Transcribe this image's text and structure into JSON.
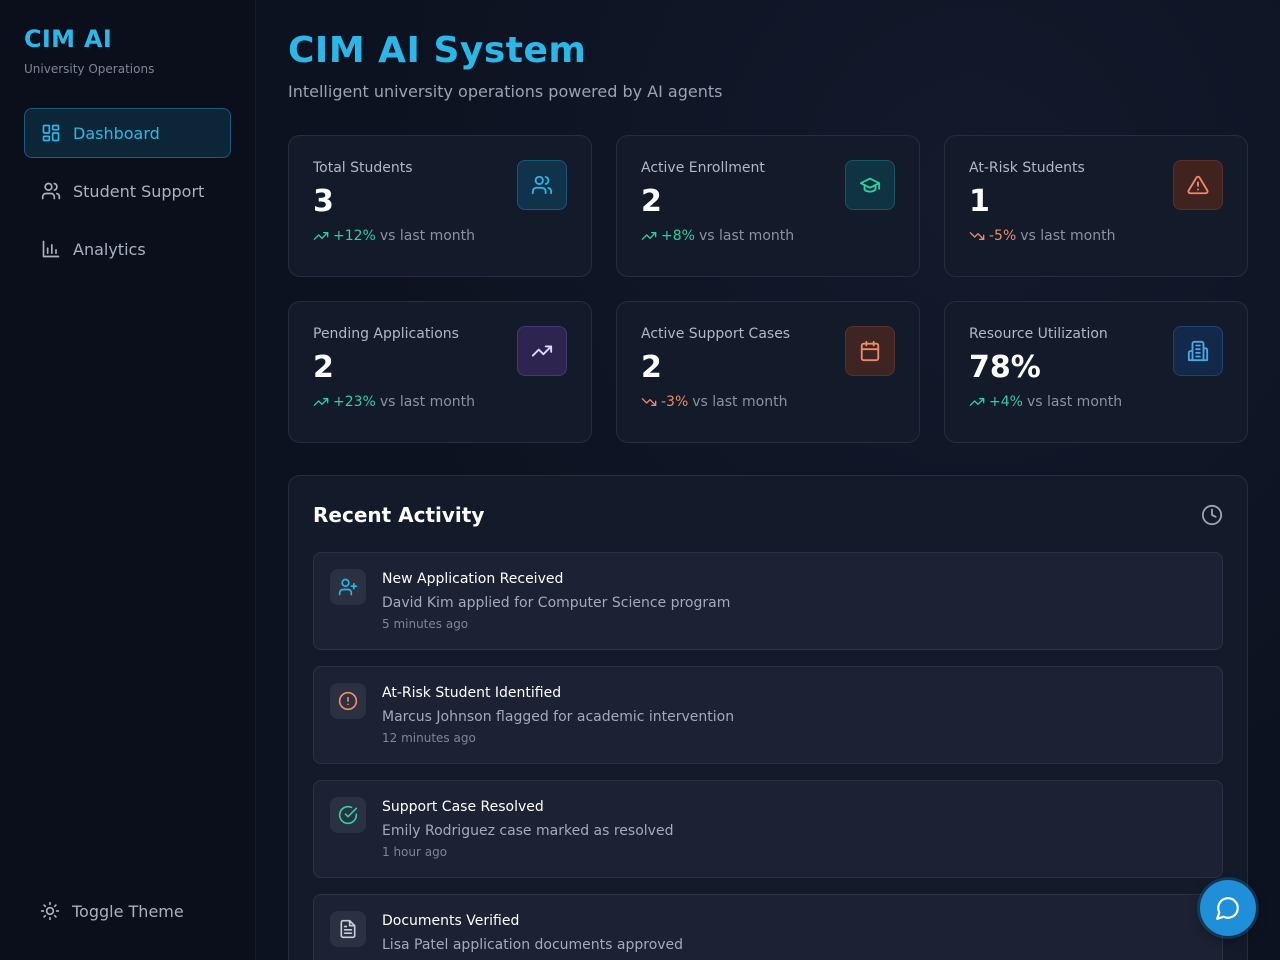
{
  "brand": {
    "title": "CIM AI",
    "subtitle": "University Operations"
  },
  "sidebar": {
    "items": [
      {
        "label": "Dashboard",
        "icon": "dashboard-grid-icon",
        "active": true
      },
      {
        "label": "Student Support",
        "icon": "users-icon",
        "active": false
      },
      {
        "label": "Analytics",
        "icon": "bar-chart-icon",
        "active": false
      }
    ],
    "toggle_theme": "Toggle Theme"
  },
  "header": {
    "title": "CIM AI System",
    "subtitle": "Intelligent university operations powered by AI agents"
  },
  "stats": [
    {
      "label": "Total Students",
      "value": "3",
      "change": "+12%",
      "change_suffix": "vs last month",
      "trend": "up",
      "icon": "users-icon"
    },
    {
      "label": "Active Enrollment",
      "value": "2",
      "change": "+8%",
      "change_suffix": "vs last month",
      "trend": "up",
      "icon": "graduation-cap-icon"
    },
    {
      "label": "At-Risk Students",
      "value": "1",
      "change": "-5%",
      "change_suffix": "vs last month",
      "trend": "down",
      "icon": "warning-triangle-icon"
    },
    {
      "label": "Pending Applications",
      "value": "2",
      "change": "+23%",
      "change_suffix": "vs last month",
      "trend": "up",
      "icon": "trending-up-icon"
    },
    {
      "label": "Active Support Cases",
      "value": "2",
      "change": "-3%",
      "change_suffix": "vs last month",
      "trend": "down",
      "icon": "calendar-icon"
    },
    {
      "label": "Resource Utilization",
      "value": "78%",
      "change": "+4%",
      "change_suffix": "vs last month",
      "trend": "up",
      "icon": "building-icon"
    }
  ],
  "activity": {
    "title": "Recent Activity",
    "items": [
      {
        "title": "New Application Received",
        "desc": "David Kim applied for Computer Science program",
        "time": "5 minutes ago",
        "icon": "user-plus-icon"
      },
      {
        "title": "At-Risk Student Identified",
        "desc": "Marcus Johnson flagged for academic intervention",
        "time": "12 minutes ago",
        "icon": "alert-circle-icon"
      },
      {
        "title": "Support Case Resolved",
        "desc": "Emily Rodriguez case marked as resolved",
        "time": "1 hour ago",
        "icon": "check-circle-icon"
      },
      {
        "title": "Documents Verified",
        "desc": "Lisa Patel application documents approved",
        "time": "",
        "icon": "document-icon"
      }
    ]
  },
  "colors": {
    "accent": "#2bb8e8",
    "positive": "#2ecfa1",
    "negative": "#f08a64",
    "background": "#0d1220"
  }
}
